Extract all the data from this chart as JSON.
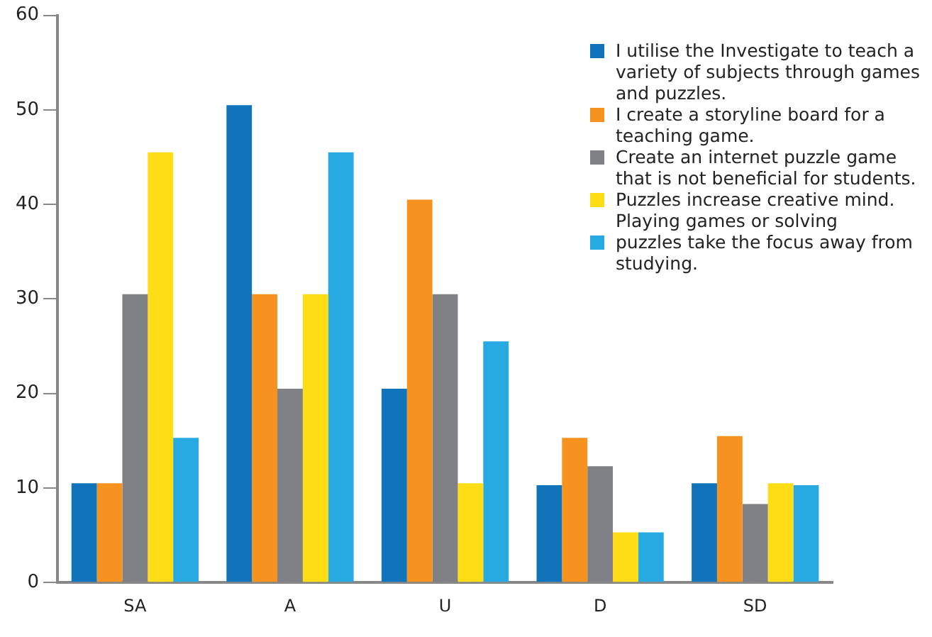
{
  "chart_data": {
    "type": "bar",
    "categories": [
      "SA",
      "A",
      "U",
      "D",
      "SD"
    ],
    "series": [
      {
        "name": "I utilise the Investigate to teach a variety of subjects through games and puzzles.",
        "color": "#1174bb",
        "values": [
          10.5,
          50.5,
          20.5,
          10.3,
          10.5
        ]
      },
      {
        "name": "I create a storyline board for a teaching game.",
        "color": "#f69320",
        "values": [
          10.5,
          30.5,
          40.5,
          15.3,
          15.5
        ]
      },
      {
        "name": "Create an internet puzzle game that is not beneficial for students.",
        "color": "#808184",
        "values": [
          30.5,
          20.5,
          30.5,
          12.3,
          8.3
        ]
      },
      {
        "name": "Puzzles increase creative mind. Playing games or solving",
        "color": "#fedd17",
        "values": [
          45.5,
          30.5,
          10.5,
          5.3,
          10.5
        ]
      },
      {
        "name": "puzzles take the focus away from studying.",
        "color": "#26aae1",
        "values": [
          15.3,
          45.5,
          25.5,
          5.3,
          10.3
        ]
      }
    ],
    "ylim": [
      0,
      60
    ],
    "yticks": [
      0,
      10,
      20,
      30,
      40,
      50,
      60
    ],
    "grid": false,
    "legend": "top right"
  }
}
